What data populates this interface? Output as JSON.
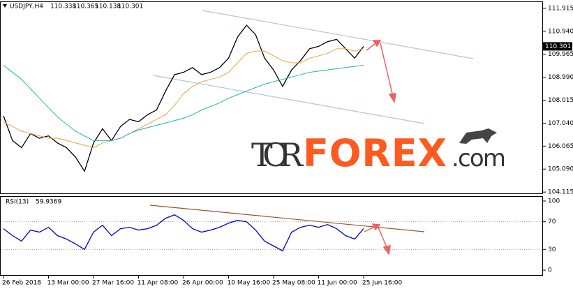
{
  "chart_data": [
    {
      "type": "line",
      "title": "USDJPY,H4",
      "ohlc": [
        110.338,
        110.365,
        110.138,
        110.301
      ],
      "last_price": 110.301,
      "categories": [
        "26 Feb 2018",
        null,
        null,
        null,
        null,
        "13 Mar 00:00",
        null,
        null,
        null,
        null,
        "27 Mar 16:00",
        null,
        null,
        null,
        null,
        "11 Apr 08:00",
        null,
        null,
        null,
        null,
        "26 Apr 00:00",
        null,
        null,
        null,
        null,
        "10 May 16:00",
        null,
        null,
        null,
        null,
        "25 May 08:00",
        null,
        null,
        null,
        null,
        "11 Jun 00:00",
        null,
        null,
        null,
        null,
        "25 Jun 16:00"
      ],
      "series": [
        {
          "color": "#000000",
          "values": [
            107.35,
            106.3,
            106.0,
            106.6,
            106.4,
            106.5,
            106.2,
            106.0,
            105.6,
            105.0,
            106.2,
            106.8,
            106.3,
            106.9,
            107.2,
            107.1,
            107.4,
            107.6,
            108.4,
            109.1,
            109.2,
            109.4,
            109.1,
            109.2,
            109.4,
            109.8,
            110.7,
            111.2,
            110.8,
            109.8,
            109.3,
            108.6,
            109.3,
            109.7,
            110.2,
            110.3,
            110.5,
            110.6,
            110.2,
            109.8,
            110.3
          ]
        },
        {
          "color": "#e8a23a",
          "values": [
            107.1,
            106.9,
            106.7,
            106.6,
            106.5,
            106.4,
            106.4,
            106.3,
            106.2,
            106.1,
            106.0,
            106.2,
            106.3,
            106.4,
            106.6,
            106.8,
            107.0,
            107.2,
            107.4,
            107.8,
            108.3,
            108.6,
            108.8,
            108.9,
            109.0,
            109.2,
            109.6,
            110.0,
            110.1,
            110.1,
            109.9,
            109.7,
            109.6,
            109.6,
            109.8,
            109.9,
            110.0,
            110.2,
            110.2,
            110.1,
            110.2
          ]
        },
        {
          "color": "#20b2aa",
          "values": [
            109.5,
            109.2,
            108.9,
            108.5,
            108.1,
            107.7,
            107.3,
            107.0,
            106.7,
            106.5,
            106.3,
            106.3,
            106.3,
            106.4,
            106.6,
            106.75,
            106.85,
            106.95,
            107.05,
            107.15,
            107.25,
            107.4,
            107.6,
            107.75,
            107.9,
            108.1,
            108.25,
            108.4,
            108.55,
            108.7,
            108.8,
            108.9,
            109.0,
            109.1,
            109.2,
            109.25,
            109.3,
            109.35,
            109.4,
            109.45,
            109.5
          ]
        }
      ],
      "ylim": [
        104.06,
        112.18
      ],
      "yticks": [
        111.915,
        {
          "value": 110.94,
          "label": "110.940"
        },
        109.965,
        {
          "value": 108.99,
          "label": "108.990"
        },
        108.015,
        {
          "value": 107.04,
          "label": "107.040"
        },
        106.065,
        {
          "value": 105.09,
          "label": "105.090"
        },
        104.115
      ]
    },
    {
      "type": "line",
      "title": "RSI(13)",
      "last_value": 59.9369,
      "series": [
        {
          "color": "#0000cd",
          "values": [
            60,
            50,
            42,
            58,
            55,
            62,
            50,
            45,
            38,
            30,
            55,
            65,
            50,
            60,
            62,
            58,
            60,
            65,
            75,
            80,
            72,
            60,
            55,
            58,
            62,
            68,
            72,
            70,
            58,
            42,
            35,
            28,
            55,
            62,
            65,
            62,
            66,
            60,
            50,
            45,
            60
          ]
        }
      ],
      "ylim": [
        -7,
        106
      ],
      "yticks": [
        100,
        70,
        30,
        0
      ],
      "levels": [
        70,
        30
      ]
    }
  ],
  "watermark": {
    "tor": "TOR",
    "forex": "FOREX",
    "com": ".com"
  }
}
